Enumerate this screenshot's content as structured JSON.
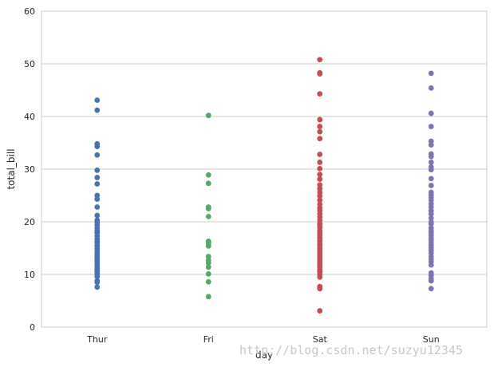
{
  "chart_data": {
    "type": "scatter",
    "xlabel": "day",
    "ylabel": "total_bill",
    "categories": [
      "Thur",
      "Fri",
      "Sat",
      "Sun"
    ],
    "ylim": [
      0,
      60
    ],
    "yticks": [
      0,
      10,
      20,
      30,
      40,
      50,
      60
    ],
    "grid": "horizontal",
    "legend": "none",
    "colors": [
      "#4c72b0",
      "#55a868",
      "#c44e52",
      "#8172b2"
    ],
    "series": [
      {
        "values": [
          43.1,
          41.2,
          34.8,
          34.3,
          32.7,
          29.8,
          28.4,
          27.2,
          25.0,
          24.3,
          22.8,
          21.2,
          20.3,
          19.8,
          19.4,
          18.8,
          18.3,
          17.9,
          17.3,
          16.7,
          16.3,
          16.0,
          15.5,
          15.0,
          14.5,
          14.1,
          13.8,
          13.4,
          13.0,
          12.7,
          12.4,
          12.0,
          11.6,
          11.2,
          10.8,
          10.5,
          10.1,
          9.6,
          8.8,
          8.5,
          7.6
        ]
      },
      {
        "values": [
          40.2,
          28.9,
          27.3,
          22.8,
          22.5,
          21.0,
          16.3,
          15.9,
          15.4,
          13.4,
          12.7,
          12.2,
          11.4,
          10.1,
          8.6,
          5.8
        ]
      },
      {
        "values": [
          50.8,
          48.3,
          48.1,
          44.3,
          39.4,
          38.1,
          37.1,
          35.8,
          32.8,
          31.3,
          30.1,
          29.0,
          28.1,
          27.0,
          26.3,
          25.6,
          24.9,
          24.1,
          23.3,
          22.6,
          22.1,
          21.5,
          20.9,
          20.3,
          19.7,
          19.4,
          18.9,
          18.3,
          17.8,
          17.4,
          16.9,
          16.4,
          15.9,
          15.5,
          15.0,
          14.6,
          14.1,
          13.6,
          13.2,
          12.7,
          12.3,
          11.8,
          11.4,
          10.9,
          10.5,
          10.0,
          9.5,
          7.7,
          7.3,
          3.1
        ]
      },
      {
        "values": [
          48.2,
          45.4,
          40.6,
          38.1,
          35.3,
          34.6,
          32.9,
          32.4,
          31.3,
          30.4,
          29.9,
          28.2,
          26.9,
          25.6,
          25.1,
          24.6,
          24.1,
          23.4,
          22.8,
          22.1,
          21.5,
          20.7,
          20.0,
          19.6,
          18.8,
          18.3,
          17.9,
          17.4,
          16.9,
          16.5,
          16.0,
          15.6,
          15.1,
          14.6,
          14.1,
          13.4,
          12.9,
          12.4,
          11.8,
          10.3,
          9.8,
          9.2,
          8.8,
          7.3
        ]
      }
    ]
  },
  "watermark": "http://blog.csdn.net/suzyu12345"
}
